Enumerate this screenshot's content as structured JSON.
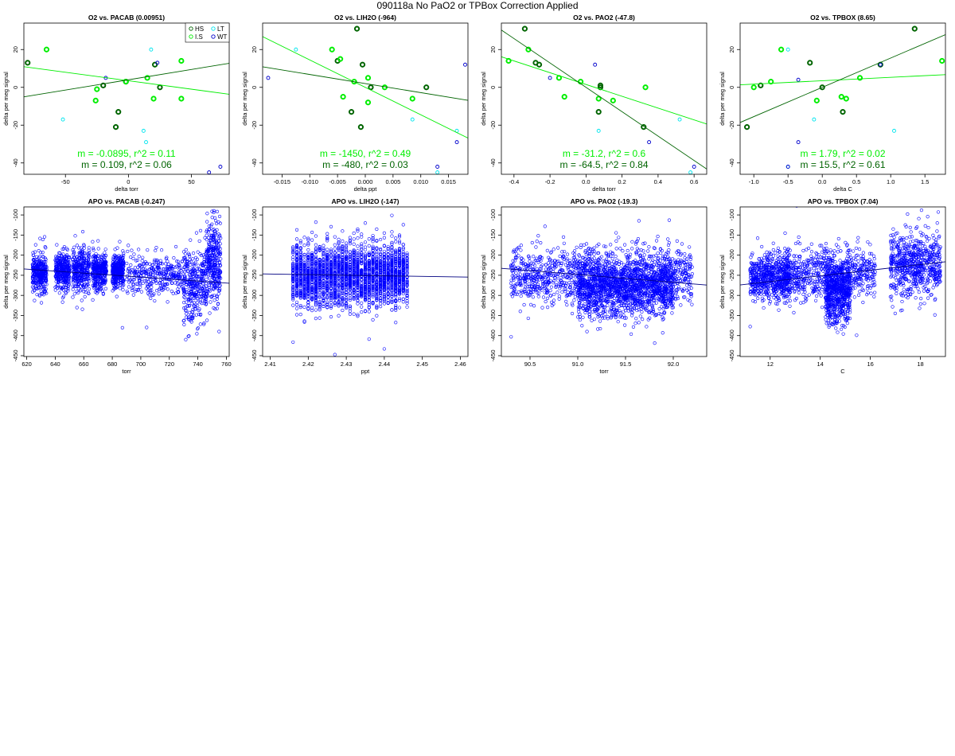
{
  "page": {
    "title": "090118a   No PaO2 or TPBox Correction Applied"
  },
  "colors": {
    "HS": "#006400",
    "I.S": "#00ee00",
    "LT": "#00e5ee",
    "WT": "#0000cd",
    "fit_dark": "#006400",
    "fit_light": "#00ee00",
    "apo_points": "#0000ff",
    "apo_fit": "#000080"
  },
  "legend": {
    "entries": [
      {
        "label": "HS",
        "group": "HS"
      },
      {
        "label": "LT",
        "group": "LT"
      },
      {
        "label": "I.S",
        "group": "I.S"
      },
      {
        "label": "WT",
        "group": "WT"
      }
    ]
  },
  "chart_data": [
    {
      "type": "scatter",
      "title": "O2 vs. PACAB (0.00951)",
      "xlabel": "delta torr",
      "ylabel": "delta per meg signal",
      "xlim": [
        -83,
        80
      ],
      "ylim": [
        -46,
        34
      ],
      "xticks": [
        -50,
        0,
        50
      ],
      "yticks": [
        -40,
        -20,
        0,
        20
      ],
      "show_legend": true,
      "points": {
        "HS": [
          [
            -80,
            13
          ],
          [
            -20,
            1
          ],
          [
            -8,
            -13
          ],
          [
            -10,
            -21
          ],
          [
            -2,
            3
          ],
          [
            21,
            12
          ],
          [
            25,
            0
          ]
        ],
        "I.S": [
          [
            -65,
            20
          ],
          [
            -25,
            -1
          ],
          [
            -26,
            -7
          ],
          [
            -2,
            3
          ],
          [
            15,
            5
          ],
          [
            20,
            -6
          ],
          [
            42,
            14
          ],
          [
            42,
            -6
          ]
        ],
        "LT": [
          [
            -52,
            -17
          ],
          [
            12,
            -23
          ],
          [
            18,
            20
          ],
          [
            14,
            -29
          ]
        ],
        "WT": [
          [
            -18,
            5
          ],
          [
            23,
            13
          ],
          [
            73,
            -42
          ],
          [
            64,
            -45
          ]
        ]
      },
      "fits": [
        {
          "color": "fit_light",
          "m": -0.0895,
          "b": 3.5,
          "label": "m = -0.0895, r^2 = 0.11"
        },
        {
          "color": "fit_dark",
          "m": 0.109,
          "b": 4.0,
          "label": "m = 0.109, r^2 = 0.06"
        }
      ]
    },
    {
      "type": "scatter",
      "title": "O2 vs. LIH2O (-964)",
      "xlabel": "delta ppt",
      "ylabel": "delta per meg signal",
      "xlim": [
        -0.0185,
        0.0185
      ],
      "ylim": [
        -46,
        34
      ],
      "xticks": [
        -0.015,
        -0.01,
        -0.005,
        0.0,
        0.005,
        0.01,
        0.015
      ],
      "xtick_labels": [
        "-0.015",
        "-0.010",
        "-0.005",
        "0.000",
        "0.005",
        "0.010",
        "0.015"
      ],
      "yticks": [
        -40,
        -20,
        0,
        20
      ],
      "points": {
        "HS": [
          [
            -0.0015,
            31
          ],
          [
            -0.005,
            14
          ],
          [
            -0.0005,
            12
          ],
          [
            0.001,
            0
          ],
          [
            0.011,
            0
          ],
          [
            -0.0025,
            -13
          ],
          [
            -0.0008,
            -21
          ]
        ],
        "I.S": [
          [
            -0.006,
            20
          ],
          [
            -0.0045,
            15
          ],
          [
            -0.002,
            3
          ],
          [
            -0.004,
            -5
          ],
          [
            0.0005,
            -8
          ],
          [
            0.0005,
            5
          ],
          [
            0.0035,
            0
          ],
          [
            0.0085,
            -6
          ]
        ],
        "LT": [
          [
            -0.0125,
            20
          ],
          [
            0.0085,
            -17
          ],
          [
            0.0165,
            -23
          ],
          [
            0.013,
            -45
          ]
        ],
        "WT": [
          [
            -0.0175,
            5
          ],
          [
            0.018,
            12
          ],
          [
            0.0165,
            -29
          ],
          [
            0.013,
            -42
          ]
        ]
      },
      "fits": [
        {
          "color": "fit_light",
          "m": -1450,
          "b": 0,
          "label": "m = -1450, r^2 = 0.49"
        },
        {
          "color": "fit_dark",
          "m": -480,
          "b": 2,
          "label": "m = -480, r^2 = 0.03"
        }
      ]
    },
    {
      "type": "scatter",
      "title": "O2 vs. PAO2 (-47.8)",
      "xlabel": "delta torr",
      "ylabel": "delta per meg signal",
      "xlim": [
        -0.47,
        0.67
      ],
      "ylim": [
        -46,
        34
      ],
      "xticks": [
        -0.4,
        -0.2,
        0.0,
        0.2,
        0.4,
        0.6
      ],
      "xtick_labels": [
        "-0.4",
        "-0.2",
        "0.0",
        "0.2",
        "0.4",
        "0.6"
      ],
      "yticks": [
        -40,
        -20,
        0,
        20
      ],
      "points": {
        "HS": [
          [
            -0.34,
            31
          ],
          [
            -0.28,
            13
          ],
          [
            -0.26,
            12
          ],
          [
            0.08,
            0
          ],
          [
            0.08,
            1
          ],
          [
            0.07,
            -13
          ],
          [
            0.32,
            -21
          ]
        ],
        "I.S": [
          [
            -0.43,
            14
          ],
          [
            -0.32,
            20
          ],
          [
            -0.15,
            5
          ],
          [
            -0.12,
            -5
          ],
          [
            -0.03,
            3
          ],
          [
            0.07,
            -6
          ],
          [
            0.15,
            -7
          ],
          [
            0.33,
            0
          ]
        ],
        "LT": [
          [
            0.07,
            -23
          ],
          [
            0.52,
            -17
          ],
          [
            0.58,
            -45
          ]
        ],
        "WT": [
          [
            0.05,
            12
          ],
          [
            -0.2,
            5
          ],
          [
            0.35,
            -29
          ],
          [
            0.6,
            -42
          ]
        ]
      },
      "fits": [
        {
          "color": "fit_light",
          "m": -31.2,
          "b": 1.5,
          "label": "m = -31.2, r^2 = 0.6"
        },
        {
          "color": "fit_dark",
          "m": -64.5,
          "b": 0,
          "label": "m = -64.5, r^2 = 0.84"
        }
      ]
    },
    {
      "type": "scatter",
      "title": "O2 vs. TPBOX (8.65)",
      "xlabel": "delta C",
      "ylabel": "delta per meg signal",
      "xlim": [
        -1.2,
        1.8
      ],
      "ylim": [
        -46,
        34
      ],
      "xticks": [
        -1.0,
        -0.5,
        0.0,
        0.5,
        1.0,
        1.5
      ],
      "xtick_labels": [
        "-1.0",
        "-0.5",
        "0.0",
        "0.5",
        "1.0",
        "1.5"
      ],
      "yticks": [
        -40,
        -20,
        0,
        20
      ],
      "points": {
        "HS": [
          [
            -1.1,
            -21
          ],
          [
            -0.9,
            1
          ],
          [
            -0.18,
            13
          ],
          [
            0,
            0
          ],
          [
            0.3,
            -13
          ],
          [
            1.35,
            31
          ],
          [
            0.85,
            12
          ]
        ],
        "I.S": [
          [
            -1.0,
            0
          ],
          [
            -0.75,
            3
          ],
          [
            -0.6,
            20
          ],
          [
            -0.08,
            -7
          ],
          [
            0.28,
            -5
          ],
          [
            0.35,
            -6
          ],
          [
            0.55,
            5
          ],
          [
            1.75,
            14
          ]
        ],
        "LT": [
          [
            -0.5,
            20
          ],
          [
            -0.12,
            -17
          ],
          [
            1.05,
            -23
          ],
          [
            -0.5,
            -42
          ]
        ],
        "WT": [
          [
            -0.35,
            4
          ],
          [
            0.85,
            12
          ],
          [
            -0.35,
            -29
          ],
          [
            -0.5,
            -42
          ]
        ]
      },
      "fits": [
        {
          "color": "fit_light",
          "m": 1.79,
          "b": 3.5,
          "label": "m = 1.79, r^2 = 0.02"
        },
        {
          "color": "fit_dark",
          "m": 15.5,
          "b": 0,
          "label": "m = 15.5, r^2 = 0.61"
        }
      ]
    },
    {
      "type": "scatter",
      "title": "APO vs. PACAB (-0.247)",
      "xlabel": "torr",
      "ylabel": "delta per meg signal",
      "xlim": [
        618,
        762
      ],
      "ylim": [
        -452,
        -80
      ],
      "xticks": [
        620,
        640,
        660,
        680,
        700,
        720,
        740,
        760
      ],
      "yticks": [
        -450,
        -400,
        -350,
        -300,
        -250,
        -200,
        -150,
        -100
      ],
      "cloud": {
        "n": 2600,
        "clusters": [
          [
            624,
            634,
            -245,
            22
          ],
          [
            640,
            650,
            -240,
            22
          ],
          [
            652,
            664,
            -240,
            28
          ],
          [
            666,
            676,
            -238,
            22
          ],
          [
            680,
            688,
            -240,
            20
          ],
          [
            690,
            730,
            -250,
            25
          ],
          [
            730,
            746,
            -275,
            45
          ],
          [
            746,
            756,
            -220,
            55
          ]
        ]
      },
      "fit": {
        "m": -0.247,
        "x0": 690,
        "y0": -252
      }
    },
    {
      "type": "scatter",
      "title": "APO vs. LIH2O (-147)",
      "xlabel": "ppt",
      "ylabel": "delta per meg signal",
      "xlim": [
        2.408,
        2.462
      ],
      "ylim": [
        -452,
        -80
      ],
      "xticks": [
        2.41,
        2.42,
        2.43,
        2.44,
        2.45,
        2.46
      ],
      "xtick_labels": [
        "2.41",
        "2.42",
        "2.43",
        "2.44",
        "2.45",
        "2.46"
      ],
      "yticks": [
        -450,
        -400,
        -350,
        -300,
        -250,
        -200,
        -150,
        -100
      ],
      "cloud": {
        "n": 2600,
        "clusters": [
          [
            2.416,
            2.446,
            -250,
            38
          ]
        ],
        "quantize": 0.001
      },
      "fit": {
        "m": -147,
        "x0": 2.431,
        "y0": -250
      }
    },
    {
      "type": "scatter",
      "title": "APO vs. PAO2 (-19.3)",
      "xlabel": "torr",
      "ylabel": "delta per meg signal",
      "xlim": [
        90.2,
        92.35
      ],
      "ylim": [
        -452,
        -80
      ],
      "xticks": [
        90.5,
        91.0,
        91.5,
        92.0
      ],
      "xtick_labels": [
        "90.5",
        "91.0",
        "91.5",
        "92.0"
      ],
      "yticks": [
        -450,
        -400,
        -350,
        -300,
        -250,
        -200,
        -150,
        -100
      ],
      "cloud": {
        "n": 2600,
        "clusters": [
          [
            90.3,
            92.2,
            -250,
            35
          ],
          [
            91.0,
            92.0,
            -285,
            35
          ]
        ]
      },
      "fit": {
        "m": -19.3,
        "x0": 91.2,
        "y0": -252
      }
    },
    {
      "type": "scatter",
      "title": "APO vs. TPBOX (7.04)",
      "xlabel": "C",
      "ylabel": "delta per meg signal",
      "xlim": [
        10.8,
        19.0
      ],
      "ylim": [
        -452,
        -80
      ],
      "xticks": [
        12,
        14,
        16,
        18
      ],
      "yticks": [
        -450,
        -400,
        -350,
        -300,
        -250,
        -200,
        -150,
        -100
      ],
      "cloud": {
        "n": 2600,
        "clusters": [
          [
            11.2,
            12.8,
            -255,
            28
          ],
          [
            12.6,
            16.2,
            -245,
            32
          ],
          [
            14.2,
            15.2,
            -290,
            40
          ],
          [
            16.8,
            18.8,
            -225,
            40
          ]
        ]
      },
      "fit": {
        "m": 7.04,
        "x0": 14.5,
        "y0": -248
      }
    }
  ]
}
